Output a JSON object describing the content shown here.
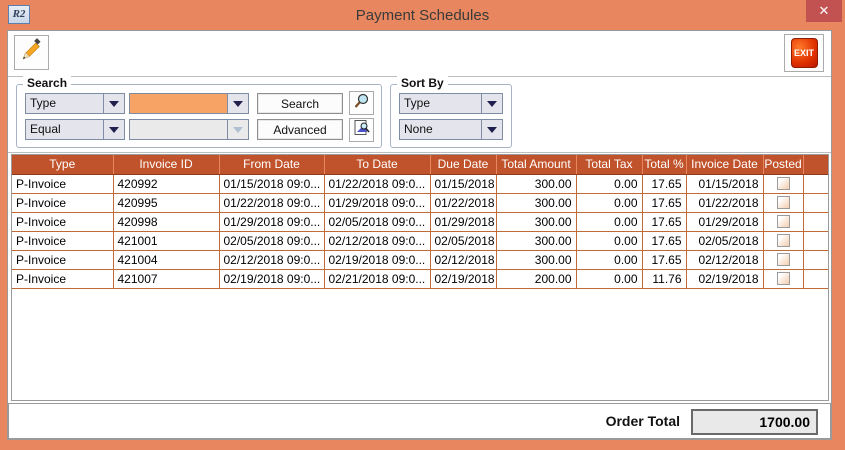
{
  "window": {
    "title": "Payment Schedules",
    "app_icon_text": "R2",
    "close_glyph": "✕"
  },
  "toolbar": {
    "exit_label": "EXIT"
  },
  "search": {
    "title": "Search",
    "field_selected": "Type",
    "operator_selected": "Equal",
    "value1": "",
    "value2": "",
    "search_button": "Search",
    "advanced_button": "Advanced"
  },
  "sort": {
    "title": "Sort By",
    "sort1_selected": "Type",
    "sort2_selected": "None"
  },
  "table": {
    "columns": [
      "Type",
      "Invoice ID",
      "From Date",
      "To Date",
      "Due Date",
      "Total Amount",
      "Total Tax",
      "Total %",
      "Invoice Date",
      "Posted"
    ],
    "rows": [
      [
        "P-Invoice",
        "420992",
        "01/15/2018 09:0...",
        "01/22/2018 09:0...",
        "01/15/2018",
        "300.00",
        "0.00",
        "17.65",
        "01/15/2018",
        false
      ],
      [
        "P-Invoice",
        "420995",
        "01/22/2018 09:0...",
        "01/29/2018 09:0...",
        "01/22/2018",
        "300.00",
        "0.00",
        "17.65",
        "01/22/2018",
        false
      ],
      [
        "P-Invoice",
        "420998",
        "01/29/2018 09:0...",
        "02/05/2018 09:0...",
        "01/29/2018",
        "300.00",
        "0.00",
        "17.65",
        "01/29/2018",
        false
      ],
      [
        "P-Invoice",
        "421001",
        "02/05/2018 09:0...",
        "02/12/2018 09:0...",
        "02/05/2018",
        "300.00",
        "0.00",
        "17.65",
        "02/05/2018",
        false
      ],
      [
        "P-Invoice",
        "421004",
        "02/12/2018 09:0...",
        "02/19/2018 09:0...",
        "02/12/2018",
        "300.00",
        "0.00",
        "17.65",
        "02/12/2018",
        false
      ],
      [
        "P-Invoice",
        "421007",
        "02/19/2018 09:0...",
        "02/21/2018 09:0...",
        "02/19/2018",
        "200.00",
        "0.00",
        "11.76",
        "02/19/2018",
        false
      ]
    ]
  },
  "footer": {
    "order_total_label": "Order Total",
    "order_total_value": "1700.00"
  },
  "colors": {
    "titlebar": "#E8875F",
    "close_button": "#C25151",
    "table_header_bg": "#C0532B",
    "table_grid_line": "#C06A35",
    "value_field_highlight": "#F6A365",
    "exit_icon_red": "#D42A00",
    "readonly_field_bg": "#E9E9E9"
  }
}
